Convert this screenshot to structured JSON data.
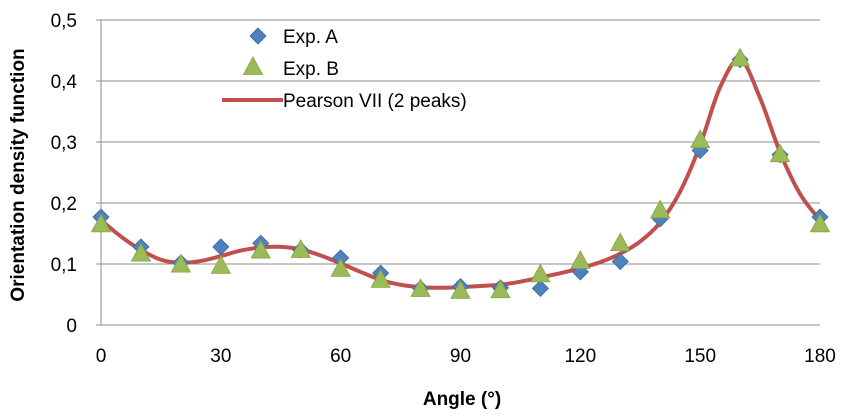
{
  "colors": {
    "exp_a": "#4f81bd",
    "exp_b": "#9bbb59",
    "fit": "#c0504d",
    "grid": "#8c8c8c"
  },
  "chart_data": {
    "type": "scatter",
    "xlabel": "Angle (°)",
    "ylabel": "Orientation density function",
    "xlim": [
      0,
      180
    ],
    "ylim": [
      0,
      0.5
    ],
    "xticks": [
      0,
      30,
      60,
      90,
      120,
      150,
      180
    ],
    "xtick_labels": [
      "0",
      "30",
      "60",
      "90",
      "120",
      "150",
      "180"
    ],
    "yticks": [
      0,
      0.1,
      0.2,
      0.3,
      0.4,
      0.5
    ],
    "ytick_labels": [
      "0",
      "0,1",
      "0,2",
      "0,3",
      "0,4",
      "0,5"
    ],
    "grid": "horizontal",
    "legend_position": "top-left",
    "series": [
      {
        "name": "Exp. A",
        "marker": "diamond",
        "x": [
          0,
          10,
          20,
          30,
          40,
          50,
          60,
          70,
          80,
          90,
          100,
          110,
          120,
          130,
          140,
          150,
          160,
          170,
          180
        ],
        "y": [
          0.177,
          0.128,
          0.102,
          0.128,
          0.134,
          0.123,
          0.11,
          0.085,
          0.06,
          0.063,
          0.061,
          0.06,
          0.087,
          0.104,
          0.174,
          0.286,
          0.435,
          0.279,
          0.177
        ]
      },
      {
        "name": "Exp. B",
        "marker": "triangle",
        "x": [
          0,
          10,
          20,
          30,
          40,
          50,
          60,
          70,
          80,
          90,
          100,
          110,
          120,
          130,
          140,
          150,
          160,
          170,
          180
        ],
        "y": [
          0.165,
          0.117,
          0.099,
          0.097,
          0.122,
          0.123,
          0.092,
          0.074,
          0.059,
          0.056,
          0.057,
          0.083,
          0.105,
          0.134,
          0.188,
          0.303,
          0.437,
          0.28,
          0.165
        ]
      },
      {
        "name": "Pearson VII (2 peaks)",
        "marker": "line",
        "x": [
          0,
          5,
          10,
          15,
          20,
          25,
          30,
          35,
          40,
          45,
          50,
          55,
          60,
          65,
          70,
          75,
          80,
          85,
          90,
          95,
          100,
          105,
          110,
          115,
          120,
          125,
          130,
          135,
          140,
          145,
          150,
          155,
          160,
          165,
          170,
          175,
          180
        ],
        "y": [
          0.172,
          0.145,
          0.123,
          0.107,
          0.102,
          0.105,
          0.113,
          0.122,
          0.127,
          0.128,
          0.124,
          0.114,
          0.101,
          0.087,
          0.074,
          0.066,
          0.062,
          0.061,
          0.062,
          0.064,
          0.066,
          0.071,
          0.078,
          0.085,
          0.093,
          0.103,
          0.117,
          0.137,
          0.168,
          0.219,
          0.295,
          0.39,
          0.435,
          0.372,
          0.283,
          0.215,
          0.172
        ]
      }
    ]
  }
}
